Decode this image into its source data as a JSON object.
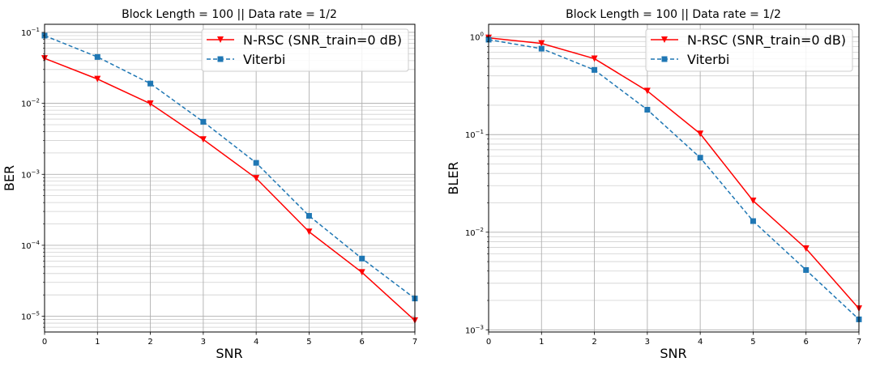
{
  "chart_data": [
    {
      "type": "line",
      "title": "Block Length = 100 || Data rate = 1/2",
      "xlabel": "SNR",
      "ylabel": "BER",
      "xlim": [
        0,
        7
      ],
      "ylim": [
        6e-06,
        0.13
      ],
      "yscale": "log",
      "grid": "major and minor",
      "legend_position": "top-right",
      "x": [
        0,
        1,
        2,
        3,
        4,
        5,
        6,
        7
      ],
      "xticks": [
        "0",
        "1",
        "2",
        "3",
        "4",
        "5",
        "6",
        "7"
      ],
      "yticks": [
        {
          "base": "10",
          "exp": "−1",
          "value": 0.1
        },
        {
          "base": "10",
          "exp": "−2",
          "value": 0.01
        },
        {
          "base": "10",
          "exp": "−3",
          "value": 0.001
        },
        {
          "base": "10",
          "exp": "−4",
          "value": 0.0001
        },
        {
          "base": "10",
          "exp": "−5",
          "value": 1e-05
        }
      ],
      "series": [
        {
          "name": "N-RSC (SNR_train=0 dB)",
          "color": "#ff0000",
          "dash": "solid",
          "marker": "triangle-down",
          "values": [
            0.043,
            0.022,
            0.0099,
            0.0031,
            0.00088,
            0.000155,
            4.15e-05,
            8.7e-06
          ]
        },
        {
          "name": "Viterbi",
          "color": "#1f77b4",
          "dash": "dashed",
          "marker": "square",
          "values": [
            0.09,
            0.045,
            0.019,
            0.0055,
            0.00145,
            0.00026,
            6.5e-05,
            1.78e-05
          ]
        }
      ]
    },
    {
      "type": "line",
      "title": "Block Length = 100 || Data rate = 1/2",
      "xlabel": "SNR",
      "ylabel": "BLER",
      "xlim": [
        0,
        7
      ],
      "ylim": [
        0.00095,
        1.35
      ],
      "yscale": "log",
      "grid": "major and minor",
      "legend_position": "top-right",
      "x": [
        0,
        1,
        2,
        3,
        4,
        5,
        6,
        7
      ],
      "xticks": [
        "0",
        "1",
        "2",
        "3",
        "4",
        "5",
        "6",
        "7"
      ],
      "yticks": [
        {
          "base": "10",
          "exp": "0",
          "value": 1
        },
        {
          "base": "10",
          "exp": "−1",
          "value": 0.1
        },
        {
          "base": "10",
          "exp": "−2",
          "value": 0.01
        },
        {
          "base": "10",
          "exp": "−3",
          "value": 0.001
        }
      ],
      "series": [
        {
          "name": "N-RSC (SNR_train=0 dB)",
          "color": "#ff0000",
          "dash": "solid",
          "marker": "triangle-down",
          "values": [
            0.98,
            0.86,
            0.6,
            0.28,
            0.102,
            0.021,
            0.0068,
            0.00165
          ]
        },
        {
          "name": "Viterbi",
          "color": "#1f77b4",
          "dash": "dashed",
          "marker": "square",
          "values": [
            0.94,
            0.76,
            0.46,
            0.18,
            0.058,
            0.013,
            0.0041,
            0.00128
          ]
        }
      ]
    }
  ]
}
